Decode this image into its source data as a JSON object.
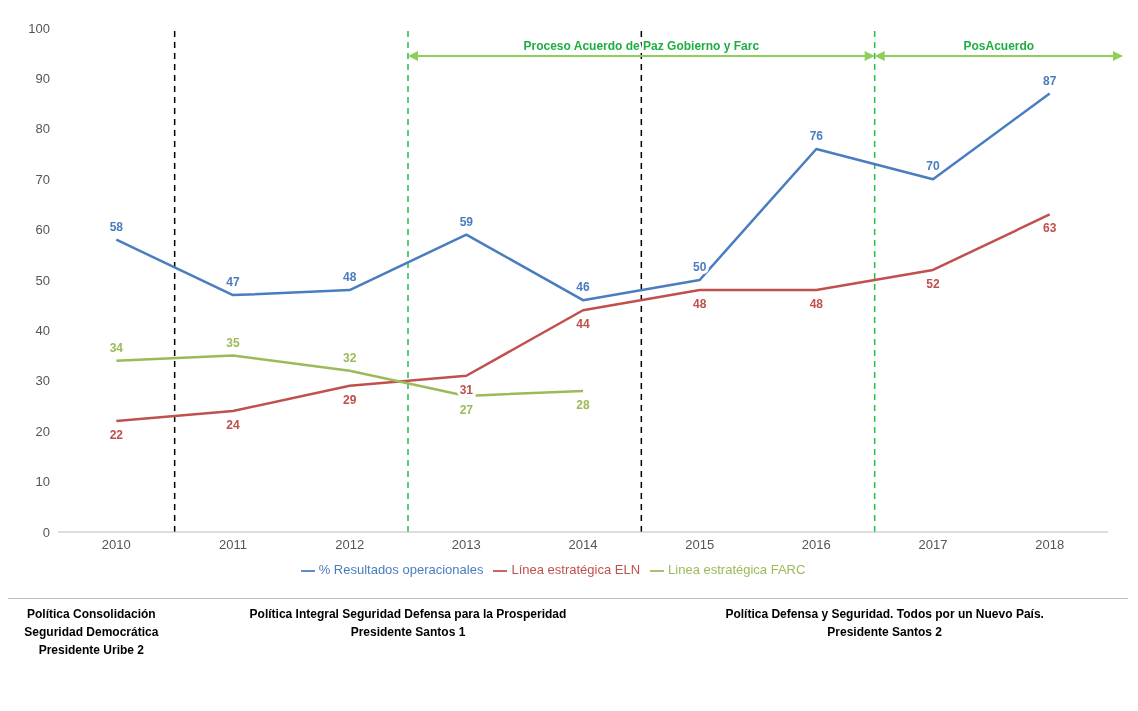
{
  "chart_data": {
    "type": "line",
    "x": [
      2010,
      2011,
      2012,
      2013,
      2014,
      2015,
      2016,
      2017,
      2018
    ],
    "xlim": [
      2009.5,
      2018.5
    ],
    "xticks": [
      2010,
      2011,
      2012,
      2013,
      2014,
      2015,
      2016,
      2017,
      2018
    ],
    "ylim": [
      0,
      100
    ],
    "yticks": [
      0,
      10,
      20,
      30,
      40,
      50,
      60,
      70,
      80,
      90,
      100
    ],
    "series": [
      {
        "name": "% Resultados operacionales",
        "color": "#4a7cc0",
        "values": [
          58,
          47,
          48,
          59,
          46,
          50,
          76,
          70,
          87
        ]
      },
      {
        "name": "Línea estratégica ELN",
        "color": "#c0504d",
        "values": [
          22,
          24,
          29,
          31,
          44,
          48,
          48,
          52,
          63
        ]
      },
      {
        "name": "Linea estratégica FARC",
        "color": "#9bbb59",
        "values": [
          34,
          35,
          32,
          27,
          28,
          null,
          null,
          null,
          null
        ]
      }
    ],
    "data_labels": true,
    "grid": false,
    "legend": "bottom",
    "line_style": "solid",
    "marker": "none",
    "ref_lines": [
      {
        "axis": "x",
        "value": 2010.5,
        "color": "#000000",
        "line_style": "dashed"
      },
      {
        "axis": "x",
        "value": 2014.5,
        "color": "#000000",
        "line_style": "dashed"
      },
      {
        "axis": "x",
        "value": 2012.5,
        "color": "#1fbf4a",
        "line_style": "dashed"
      },
      {
        "axis": "x",
        "value": 2016.5,
        "color": "#1fbf4a",
        "line_style": "dashed"
      }
    ],
    "annotations": [
      "Proceso Acuerdo de Paz  Gobierno y Farc",
      "PosAcuerdo",
      "Política  Consolidación Seguridad Democrática Presidente Uribe 2",
      "Política Integral Seguridad Defensa para la Prosperidad Presidente Santos 1",
      "Política Defensa y Seguridad. Todos por un Nuevo País. Presidente Santos 2"
    ]
  }
}
